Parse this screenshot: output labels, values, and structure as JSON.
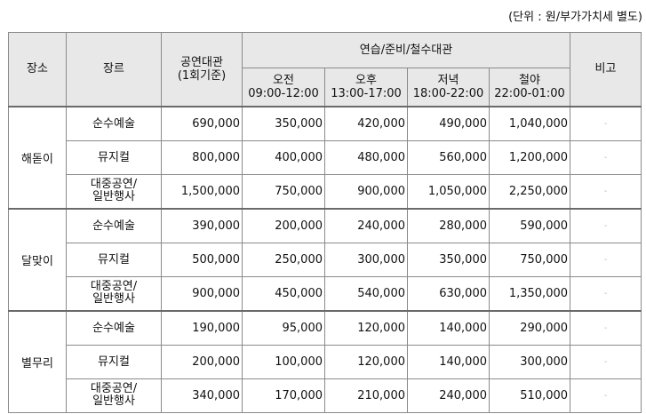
{
  "unit_note": "(단위 : 원/부가가치세 별도)",
  "header": {
    "venue": "장소",
    "genre": "장르",
    "performance_line1": "공연대관",
    "performance_line2": "(1회기준)",
    "practice_group": "연습/준비/철수대관",
    "note": "비고",
    "slots": [
      {
        "label": "오전",
        "time": "09:00-12:00"
      },
      {
        "label": "오후",
        "time": "13:00-17:00"
      },
      {
        "label": "저녁",
        "time": "18:00-22:00"
      },
      {
        "label": "철야",
        "time": "22:00-01:00"
      }
    ]
  },
  "venues": [
    {
      "name": "해돋이",
      "rows": [
        {
          "genre_line1": "순수예술",
          "genre_line2": "",
          "performance": "690,000",
          "morning": "350,000",
          "afternoon": "420,000",
          "evening": "490,000",
          "overnight": "1,040,000",
          "note": "-"
        },
        {
          "genre_line1": "뮤지컬",
          "genre_line2": "",
          "performance": "800,000",
          "morning": "400,000",
          "afternoon": "480,000",
          "evening": "560,000",
          "overnight": "1,200,000",
          "note": "-"
        },
        {
          "genre_line1": "대중공연/",
          "genre_line2": "일반행사",
          "performance": "1,500,000",
          "morning": "750,000",
          "afternoon": "900,000",
          "evening": "1,050,000",
          "overnight": "2,250,000",
          "note": "-"
        }
      ]
    },
    {
      "name": "달맞이",
      "rows": [
        {
          "genre_line1": "순수예술",
          "genre_line2": "",
          "performance": "390,000",
          "morning": "200,000",
          "afternoon": "240,000",
          "evening": "280,000",
          "overnight": "590,000",
          "note": "-"
        },
        {
          "genre_line1": "뮤지컬",
          "genre_line2": "",
          "performance": "500,000",
          "morning": "250,000",
          "afternoon": "300,000",
          "evening": "350,000",
          "overnight": "750,000",
          "note": "-"
        },
        {
          "genre_line1": "대중공연/",
          "genre_line2": "일반행사",
          "performance": "900,000",
          "morning": "450,000",
          "afternoon": "540,000",
          "evening": "630,000",
          "overnight": "1,350,000",
          "note": "-"
        }
      ]
    },
    {
      "name": "별무리",
      "rows": [
        {
          "genre_line1": "순수예술",
          "genre_line2": "",
          "performance": "190,000",
          "morning": "95,000",
          "afternoon": "120,000",
          "evening": "140,000",
          "overnight": "290,000",
          "note": "-"
        },
        {
          "genre_line1": "뮤지컬",
          "genre_line2": "",
          "performance": "200,000",
          "morning": "100,000",
          "afternoon": "120,000",
          "evening": "140,000",
          "overnight": "300,000",
          "note": "-"
        },
        {
          "genre_line1": "대중공연/",
          "genre_line2": "일반행사",
          "performance": "340,000",
          "morning": "170,000",
          "afternoon": "210,000",
          "evening": "240,000",
          "overnight": "510,000",
          "note": "-"
        }
      ]
    }
  ]
}
